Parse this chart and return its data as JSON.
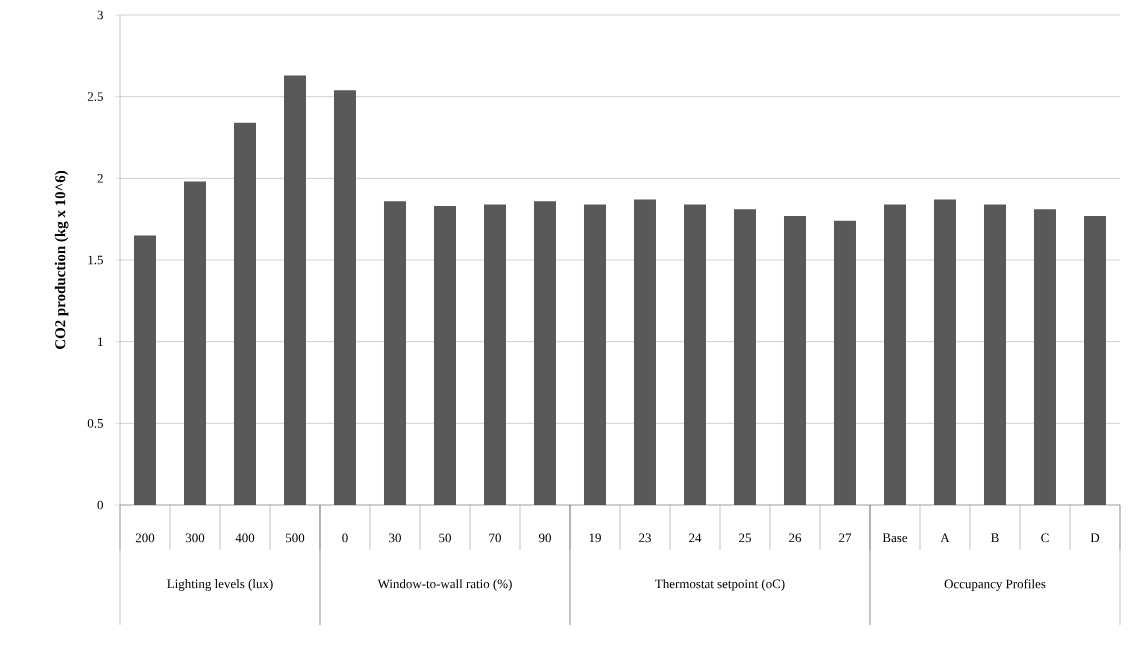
{
  "chart_data": {
    "type": "bar",
    "ylabel": "CO2 production (kg x 10^6)",
    "categories": [
      "200",
      "300",
      "400",
      "500",
      "0",
      "30",
      "50",
      "70",
      "90",
      "19",
      "23",
      "24",
      "25",
      "26",
      "27",
      "Base",
      "A",
      "B",
      "C",
      "D"
    ],
    "values": [
      1.65,
      1.98,
      2.34,
      2.63,
      2.54,
      1.86,
      1.83,
      1.84,
      1.86,
      1.84,
      1.87,
      1.84,
      1.81,
      1.77,
      1.74,
      1.84,
      1.87,
      1.84,
      1.81,
      1.77
    ],
    "color": "#595959",
    "ylim": [
      0,
      3
    ],
    "yticks": [
      0,
      0.5,
      1,
      1.5,
      2,
      2.5,
      3
    ],
    "grid": "y",
    "annotations": [
      "Lighting levels (lux)",
      "Window-to-wall ratio (%)",
      "Thermostat setpoint (oC)",
      "Occupancy Profiles"
    ]
  }
}
